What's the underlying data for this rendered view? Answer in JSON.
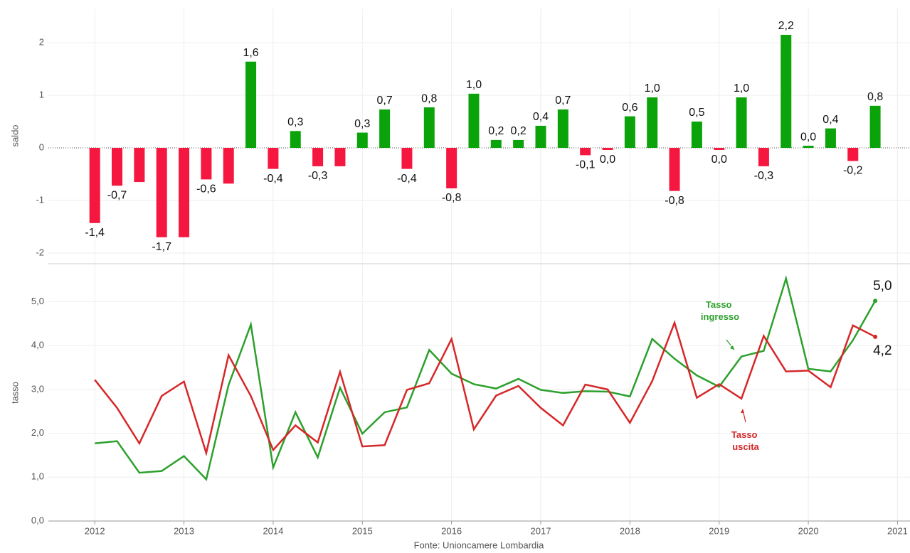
{
  "chart_data": [
    {
      "type": "bar",
      "y_label": "saldo",
      "x": [
        2012,
        2012.25,
        2012.5,
        2012.75,
        2013,
        2013.25,
        2013.5,
        2013.75,
        2014,
        2014.25,
        2014.5,
        2014.75,
        2015,
        2015.25,
        2015.5,
        2015.75,
        2016,
        2016.25,
        2016.5,
        2016.75,
        2017,
        2017.25,
        2017.5,
        2017.75,
        2018,
        2018.25,
        2018.5,
        2018.75,
        2019,
        2019.25,
        2019.5,
        2019.75,
        2020,
        2020.25,
        2020.5,
        2020.75
      ],
      "values": [
        -1.43,
        -0.72,
        -0.65,
        -1.7,
        -1.7,
        -0.6,
        -0.68,
        1.64,
        -0.4,
        0.32,
        -0.35,
        -0.35,
        0.29,
        0.73,
        -0.4,
        0.77,
        -0.77,
        1.03,
        0.15,
        0.15,
        0.42,
        0.73,
        -0.14,
        -0.04,
        0.6,
        0.96,
        -0.82,
        0.5,
        -0.04,
        0.96,
        -0.35,
        2.15,
        0.04,
        0.37,
        -0.25,
        0.8
      ],
      "value_labels": [
        "-1,4",
        "-0,7",
        null,
        "-1,7",
        null,
        "-0,6",
        null,
        "1,6",
        "-0,4",
        "0,3",
        "-0,3",
        null,
        "0,3",
        "0,7",
        "-0,4",
        "0,8",
        "-0,8",
        "1,0",
        "0,2",
        "0,2",
        "0,4",
        "0,7",
        "-0,1",
        "0,0",
        "0,6",
        "1,0",
        "-0,8",
        "0,5",
        "0,0",
        "1,0",
        "-0,3",
        "2,2",
        "0,0",
        "0,4",
        "-0,2",
        "0,8"
      ],
      "positive_color": "#0aa30a",
      "negative_color": "#f5173f",
      "xlim": [
        2011.48,
        2021.14
      ],
      "xticks": [
        2012,
        2013,
        2014,
        2015,
        2016,
        2017,
        2018,
        2019,
        2020,
        2021
      ],
      "ylim": [
        -2.19,
        2.65
      ],
      "yticks": [
        -2,
        -1,
        0,
        1,
        2
      ],
      "grid": true
    },
    {
      "type": "line",
      "y_label": "tasso",
      "source": "Fonte: Unioncamere Lombardia",
      "x": [
        2012,
        2012.25,
        2012.5,
        2012.75,
        2013,
        2013.25,
        2013.5,
        2013.75,
        2014,
        2014.25,
        2014.5,
        2014.75,
        2015,
        2015.25,
        2015.5,
        2015.75,
        2016,
        2016.25,
        2016.5,
        2016.75,
        2017,
        2017.25,
        2017.5,
        2017.75,
        2018,
        2018.25,
        2018.5,
        2018.75,
        2019,
        2019.25,
        2019.5,
        2019.75,
        2020,
        2020.25,
        2020.5,
        2020.75
      ],
      "series": [
        {
          "name": "Tasso ingresso",
          "color": "#2ca02c",
          "end_label": "5,0",
          "values": [
            1.77,
            1.82,
            1.1,
            1.14,
            1.48,
            0.95,
            3.1,
            4.48,
            1.22,
            2.48,
            1.45,
            3.04,
            1.99,
            2.48,
            2.59,
            3.9,
            3.36,
            3.12,
            3.02,
            3.24,
            2.99,
            2.92,
            2.96,
            2.95,
            2.84,
            4.15,
            3.7,
            3.32,
            3.06,
            3.75,
            3.88,
            5.53,
            3.47,
            3.41,
            4.12,
            5.02
          ]
        },
        {
          "name": "Tasso uscita",
          "color": "#d62728",
          "end_label": "4,2",
          "values": [
            3.22,
            2.58,
            1.77,
            2.85,
            3.18,
            1.55,
            3.78,
            2.85,
            1.62,
            2.18,
            1.79,
            3.4,
            1.7,
            1.73,
            2.99,
            3.14,
            4.15,
            2.09,
            2.86,
            3.08,
            2.58,
            2.18,
            3.11,
            3.0,
            2.24,
            3.19,
            4.52,
            2.81,
            3.12,
            2.79,
            4.22,
            3.41,
            3.43,
            3.05,
            4.46,
            4.2
          ]
        }
      ],
      "xlim": [
        2011.48,
        2021.14
      ],
      "xticks": [
        2012,
        2013,
        2014,
        2015,
        2016,
        2017,
        2018,
        2019,
        2020,
        2021
      ],
      "ylim": [
        0,
        5.85
      ],
      "yticks": [
        {
          "value": 0,
          "label": "0,0"
        },
        {
          "value": 1,
          "label": "1,0"
        },
        {
          "value": 2,
          "label": "2,0"
        },
        {
          "value": 3,
          "label": "3,0"
        },
        {
          "value": 4,
          "label": "4,0"
        },
        {
          "value": 5,
          "label": "5,0"
        }
      ],
      "grid": true
    }
  ]
}
